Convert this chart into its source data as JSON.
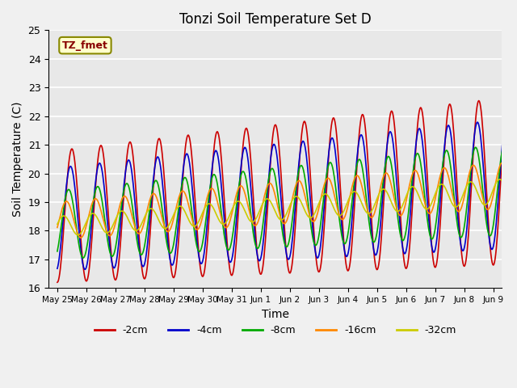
{
  "title": "Tonzi Soil Temperature Set D",
  "xlabel": "Time",
  "ylabel": "Soil Temperature (C)",
  "ylim": [
    16.0,
    25.0
  ],
  "yticks": [
    16.0,
    17.0,
    18.0,
    19.0,
    20.0,
    21.0,
    22.0,
    23.0,
    24.0,
    25.0
  ],
  "x_labels": [
    "May 25",
    "May 26",
    "May 27",
    "May 28",
    "May 29",
    "May 30",
    "May 31",
    "Jun 1",
    "Jun 2",
    "Jun 3",
    "Jun 4",
    "Jun 5",
    "Jun 6",
    "Jun 7",
    "Jun 8",
    "Jun 9"
  ],
  "series_colors": [
    "#cc0000",
    "#0000cc",
    "#00aa00",
    "#ff8800",
    "#cccc00"
  ],
  "series_labels": [
    "-2cm",
    "-4cm",
    "-8cm",
    "-16cm",
    "-32cm"
  ],
  "annotation_text": "TZ_fmet",
  "annotation_bg": "#ffffcc",
  "annotation_border": "#888800",
  "annotation_text_color": "#880000",
  "bg_color": "#e8e8e8"
}
